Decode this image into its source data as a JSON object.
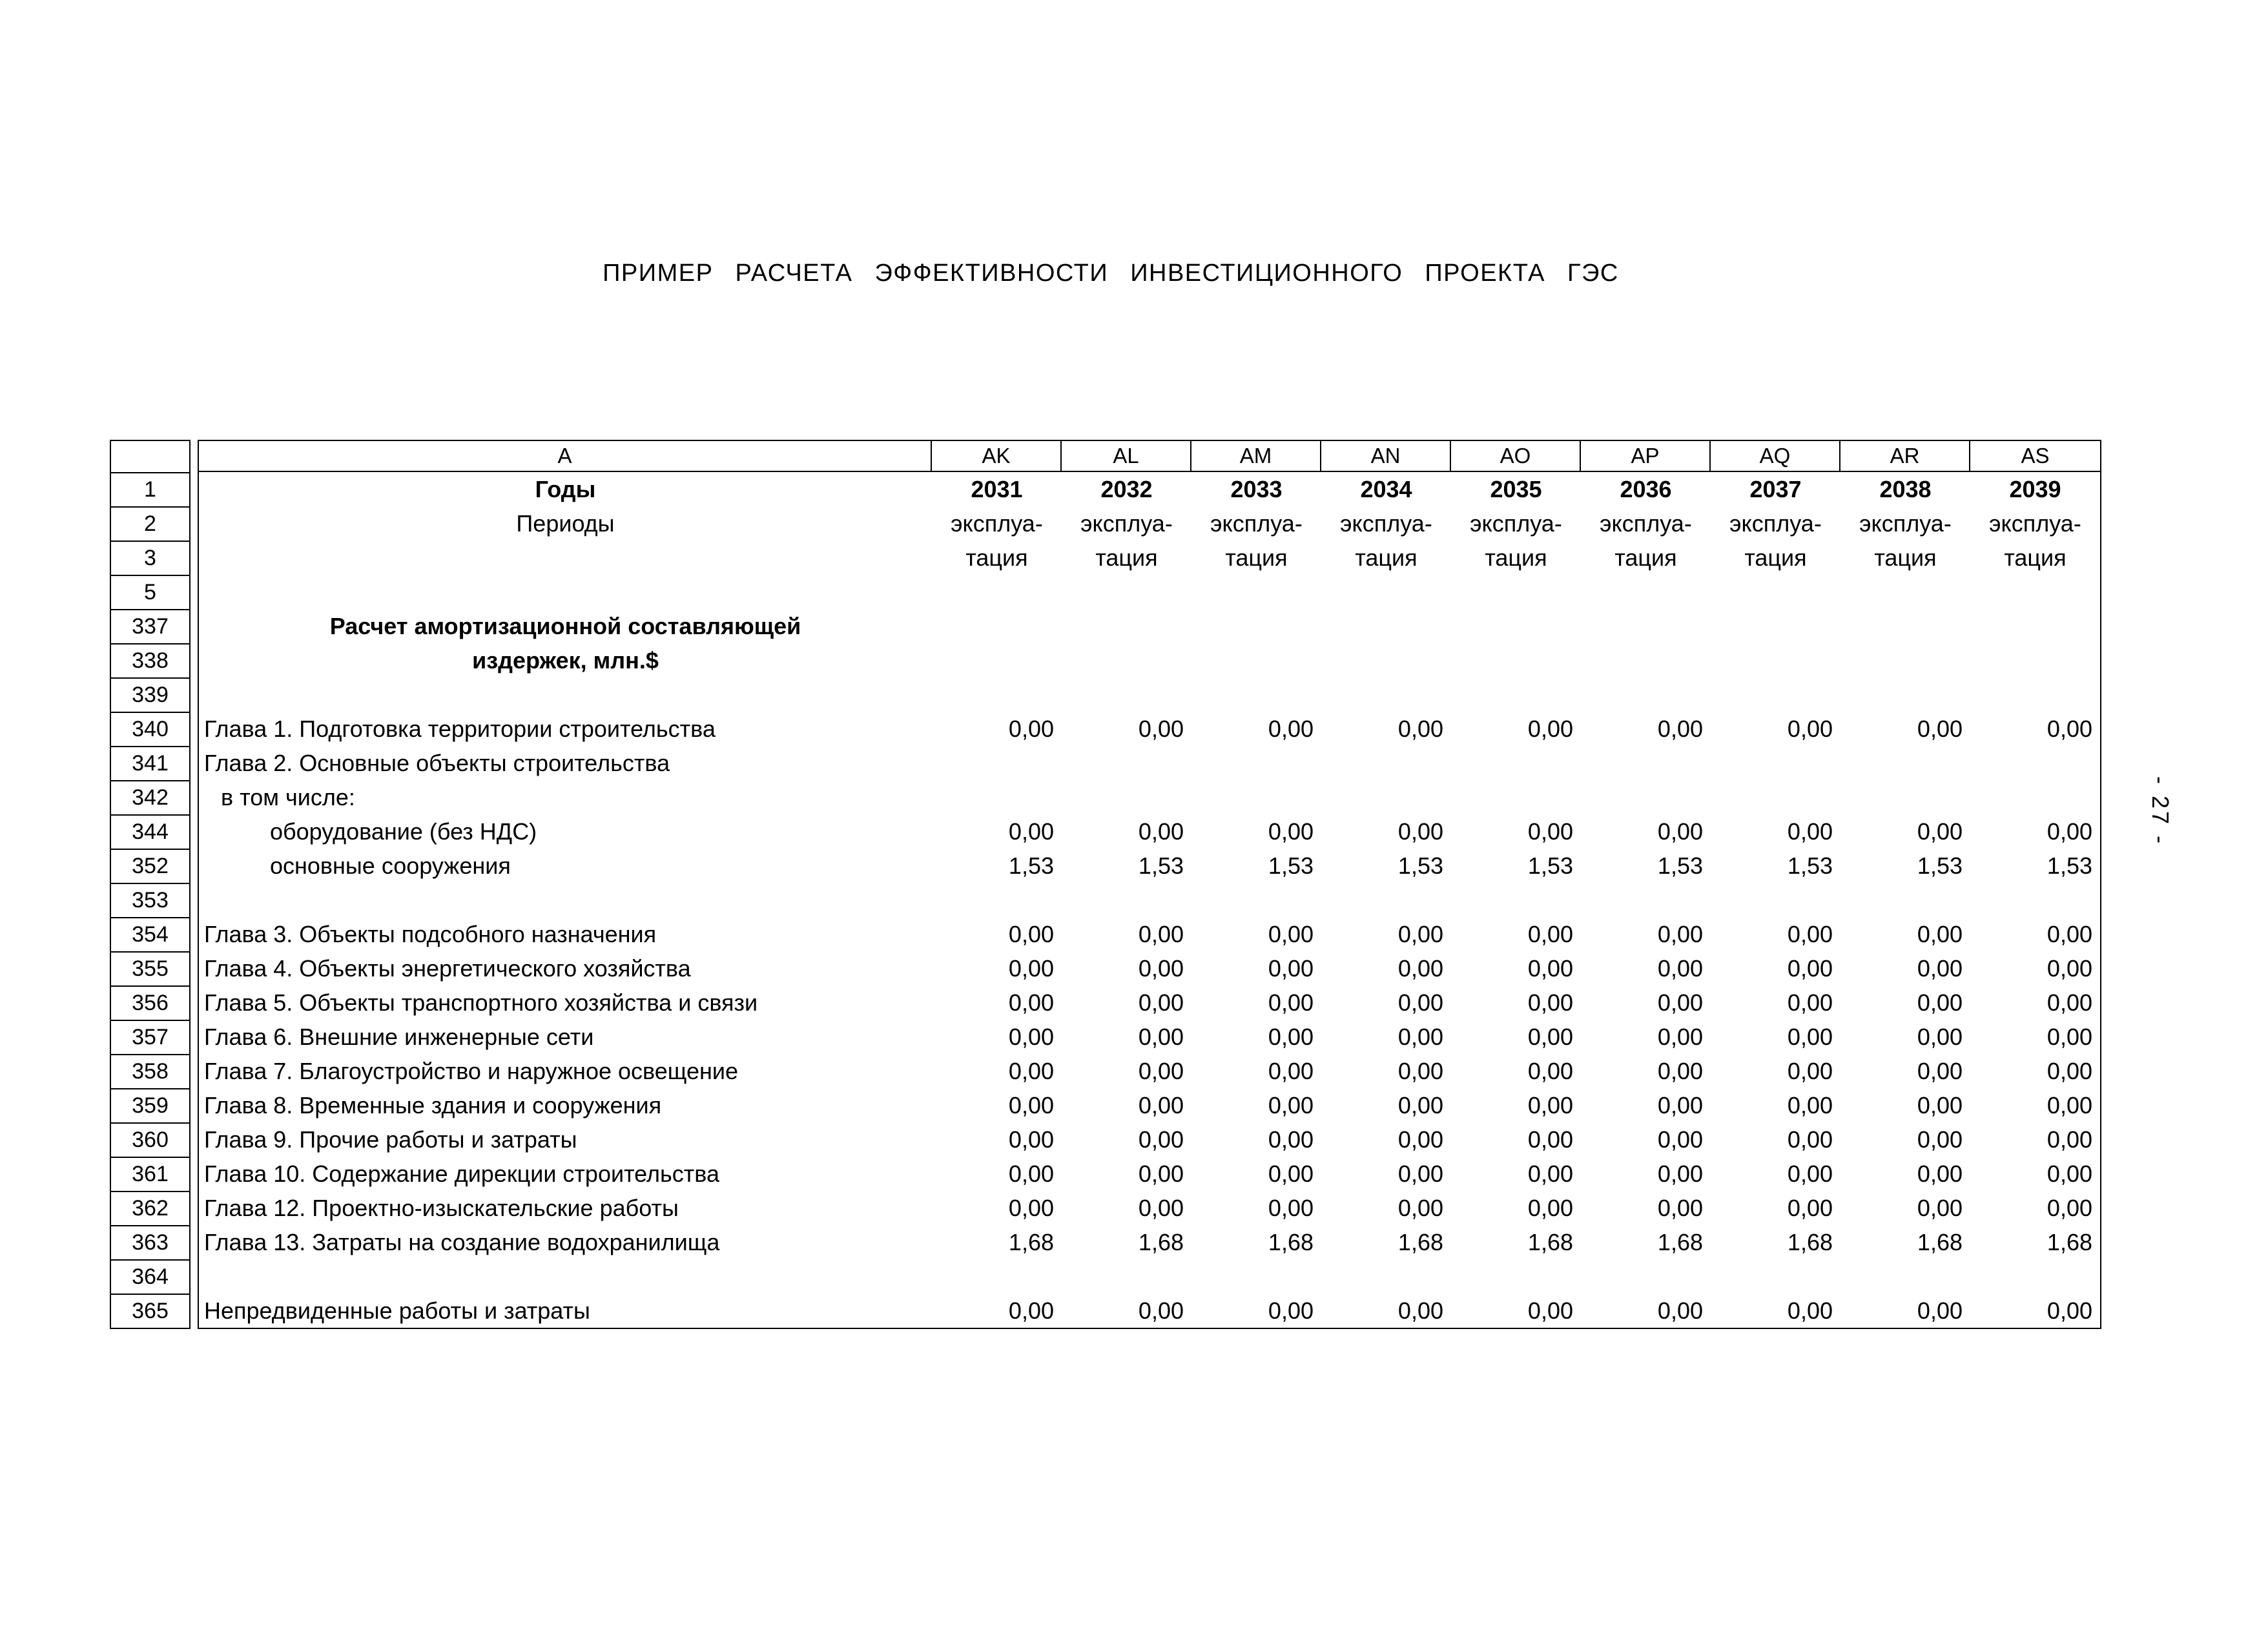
{
  "document": {
    "title": "ПРИМЕР РАСЧЕТА ЭФФЕКТИВНОСТИ ИНВЕСТИЦИОННОГО ПРОЕКТА ГЭС",
    "page_number": "- 27 -"
  },
  "table": {
    "corner_letter": "A",
    "column_letters": [
      "AK",
      "AL",
      "AM",
      "AN",
      "AO",
      "AP",
      "AQ",
      "AR",
      "AS"
    ],
    "rows": [
      {
        "num": "1",
        "label": "Годы",
        "lc": "center bold",
        "vc": "center bold",
        "values": [
          "2031",
          "2032",
          "2033",
          "2034",
          "2035",
          "2036",
          "2037",
          "2038",
          "2039"
        ]
      },
      {
        "num": "2",
        "label": "Периоды",
        "lc": "center",
        "vc": "center",
        "values": [
          "эксплуа-",
          "эксплуа-",
          "эксплуа-",
          "эксплуа-",
          "эксплуа-",
          "эксплуа-",
          "эксплуа-",
          "эксплуа-",
          "эксплуа-"
        ]
      },
      {
        "num": "3",
        "label": "",
        "lc": "center",
        "vc": "center",
        "values": [
          "тация",
          "тация",
          "тация",
          "тация",
          "тация",
          "тация",
          "тация",
          "тация",
          "тация"
        ]
      },
      {
        "num": "5",
        "label": "",
        "lc": "",
        "vc": "num",
        "values": []
      },
      {
        "num": "337",
        "label": "Расчет амортизационной составляющей",
        "lc": "center bold",
        "vc": "num",
        "values": []
      },
      {
        "num": "338",
        "label": "издержек, млн.$",
        "lc": "center bold",
        "vc": "num",
        "values": []
      },
      {
        "num": "339",
        "label": "",
        "lc": "",
        "vc": "num",
        "values": []
      },
      {
        "num": "340",
        "label": "Глава 1. Подготовка территории строительства",
        "lc": "",
        "vc": "num",
        "values": [
          "0,00",
          "0,00",
          "0,00",
          "0,00",
          "0,00",
          "0,00",
          "0,00",
          "0,00",
          "0,00"
        ]
      },
      {
        "num": "341",
        "label": "Глава 2. Основные объекты строительства",
        "lc": "",
        "vc": "num",
        "values": []
      },
      {
        "num": "342",
        "label": "в том числе:",
        "lc": "ind1",
        "vc": "num",
        "values": []
      },
      {
        "num": "344",
        "label": "оборудование (без НДС)",
        "lc": "ind2",
        "vc": "num",
        "values": [
          "0,00",
          "0,00",
          "0,00",
          "0,00",
          "0,00",
          "0,00",
          "0,00",
          "0,00",
          "0,00"
        ]
      },
      {
        "num": "352",
        "label": "основные сооружения",
        "lc": "ind2",
        "vc": "num",
        "values": [
          "1,53",
          "1,53",
          "1,53",
          "1,53",
          "1,53",
          "1,53",
          "1,53",
          "1,53",
          "1,53"
        ]
      },
      {
        "num": "353",
        "label": "",
        "lc": "",
        "vc": "num",
        "values": []
      },
      {
        "num": "354",
        "label": "Глава 3. Объекты подсобного назначения",
        "lc": "",
        "vc": "num",
        "values": [
          "0,00",
          "0,00",
          "0,00",
          "0,00",
          "0,00",
          "0,00",
          "0,00",
          "0,00",
          "0,00"
        ]
      },
      {
        "num": "355",
        "label": "Глава 4. Объекты энергетического хозяйства",
        "lc": "",
        "vc": "num",
        "values": [
          "0,00",
          "0,00",
          "0,00",
          "0,00",
          "0,00",
          "0,00",
          "0,00",
          "0,00",
          "0,00"
        ]
      },
      {
        "num": "356",
        "label": "Глава 5. Объекты транспортного хозяйства и связи",
        "lc": "",
        "vc": "num",
        "values": [
          "0,00",
          "0,00",
          "0,00",
          "0,00",
          "0,00",
          "0,00",
          "0,00",
          "0,00",
          "0,00"
        ]
      },
      {
        "num": "357",
        "label": "Глава 6. Внешние инженерные сети",
        "lc": "",
        "vc": "num",
        "values": [
          "0,00",
          "0,00",
          "0,00",
          "0,00",
          "0,00",
          "0,00",
          "0,00",
          "0,00",
          "0,00"
        ]
      },
      {
        "num": "358",
        "label": "Глава 7. Благоустройство и наружное освещение",
        "lc": "",
        "vc": "num",
        "values": [
          "0,00",
          "0,00",
          "0,00",
          "0,00",
          "0,00",
          "0,00",
          "0,00",
          "0,00",
          "0,00"
        ]
      },
      {
        "num": "359",
        "label": "Глава 8. Временные здания и сооружения",
        "lc": "",
        "vc": "num",
        "values": [
          "0,00",
          "0,00",
          "0,00",
          "0,00",
          "0,00",
          "0,00",
          "0,00",
          "0,00",
          "0,00"
        ]
      },
      {
        "num": "360",
        "label": "Глава 9. Прочие работы и затраты",
        "lc": "",
        "vc": "num",
        "values": [
          "0,00",
          "0,00",
          "0,00",
          "0,00",
          "0,00",
          "0,00",
          "0,00",
          "0,00",
          "0,00"
        ]
      },
      {
        "num": "361",
        "label": "Глава 10. Содержание дирекции строительства",
        "lc": "",
        "vc": "num",
        "values": [
          "0,00",
          "0,00",
          "0,00",
          "0,00",
          "0,00",
          "0,00",
          "0,00",
          "0,00",
          "0,00"
        ]
      },
      {
        "num": "362",
        "label": "Глава 12. Проектно-изыскательские работы",
        "lc": "",
        "vc": "num",
        "values": [
          "0,00",
          "0,00",
          "0,00",
          "0,00",
          "0,00",
          "0,00",
          "0,00",
          "0,00",
          "0,00"
        ]
      },
      {
        "num": "363",
        "label": "Глава 13. Затраты на создание водохранилища",
        "lc": "",
        "vc": "num",
        "values": [
          "1,68",
          "1,68",
          "1,68",
          "1,68",
          "1,68",
          "1,68",
          "1,68",
          "1,68",
          "1,68"
        ]
      },
      {
        "num": "364",
        "label": "",
        "lc": "",
        "vc": "num",
        "values": []
      },
      {
        "num": "365",
        "label": "Непредвиденные работы и затраты",
        "lc": "",
        "vc": "num",
        "values": [
          "0,00",
          "0,00",
          "0,00",
          "0,00",
          "0,00",
          "0,00",
          "0,00",
          "0,00",
          "0,00"
        ]
      }
    ]
  }
}
